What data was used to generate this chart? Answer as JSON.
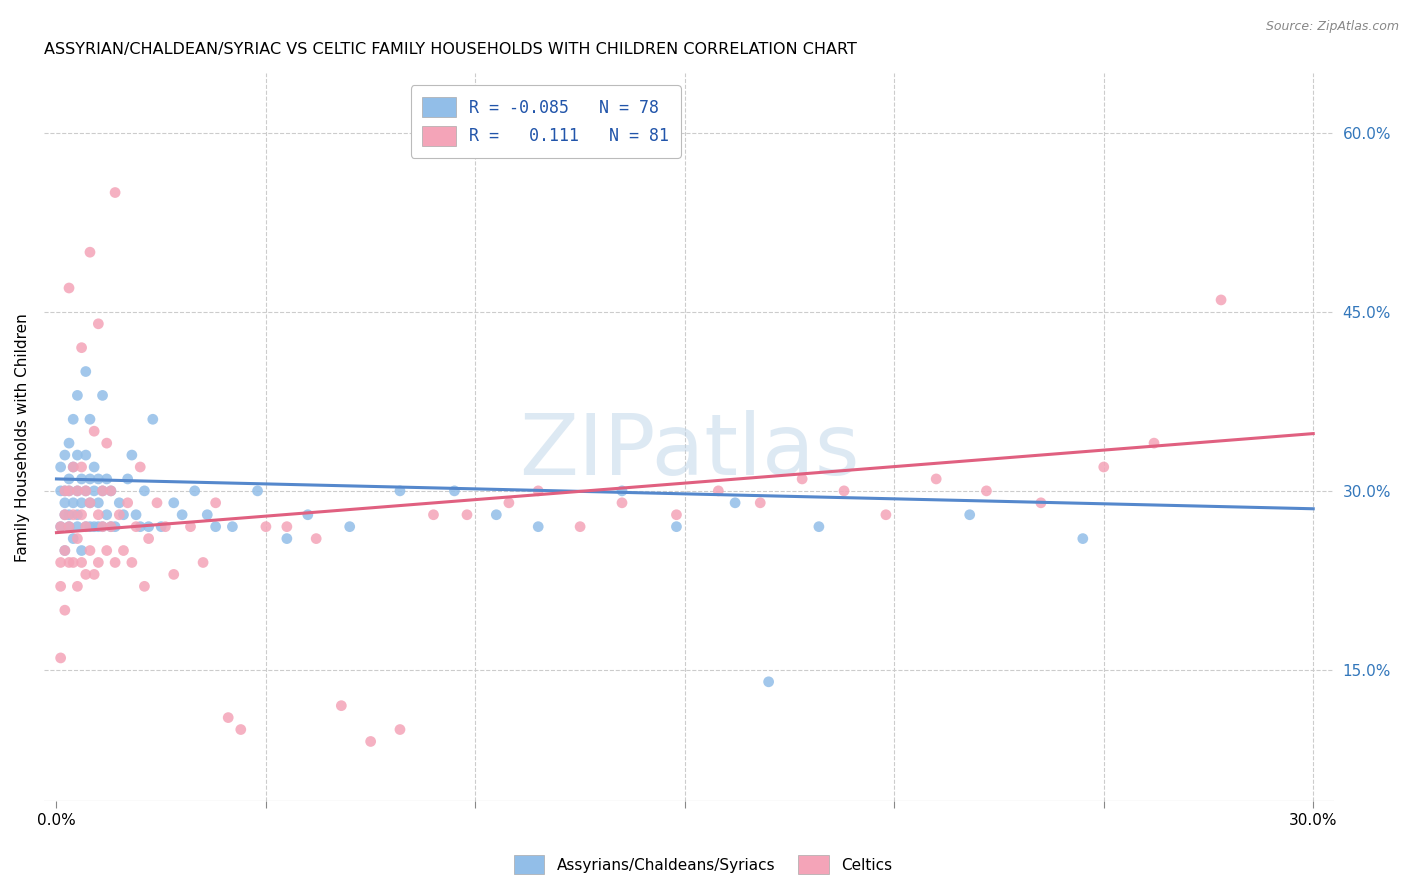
{
  "title": "ASSYRIAN/CHALDEAN/SYRIAC VS CELTIC FAMILY HOUSEHOLDS WITH CHILDREN CORRELATION CHART",
  "source": "Source: ZipAtlas.com",
  "ylabel": "Family Households with Children",
  "yticks": [
    "15.0%",
    "30.0%",
    "45.0%",
    "60.0%"
  ],
  "ytick_vals": [
    0.15,
    0.3,
    0.45,
    0.6
  ],
  "xtick_vals": [
    0.0,
    0.05,
    0.1,
    0.15,
    0.2,
    0.25,
    0.3
  ],
  "xlim": [
    -0.003,
    0.305
  ],
  "ylim": [
    0.04,
    0.65
  ],
  "blue_color": "#92BEE8",
  "pink_color": "#F4A4B8",
  "blue_line_color": "#5588CC",
  "pink_line_color": "#E06080",
  "watermark": "ZIPatlas",
  "blue_scatter_x": [
    0.001,
    0.001,
    0.001,
    0.002,
    0.002,
    0.002,
    0.002,
    0.002,
    0.003,
    0.003,
    0.003,
    0.003,
    0.003,
    0.004,
    0.004,
    0.004,
    0.004,
    0.005,
    0.005,
    0.005,
    0.005,
    0.005,
    0.006,
    0.006,
    0.006,
    0.007,
    0.007,
    0.007,
    0.007,
    0.008,
    0.008,
    0.008,
    0.008,
    0.009,
    0.009,
    0.009,
    0.01,
    0.01,
    0.01,
    0.011,
    0.011,
    0.011,
    0.012,
    0.012,
    0.013,
    0.013,
    0.014,
    0.015,
    0.016,
    0.017,
    0.018,
    0.019,
    0.02,
    0.021,
    0.022,
    0.023,
    0.025,
    0.028,
    0.03,
    0.033,
    0.036,
    0.038,
    0.042,
    0.048,
    0.055,
    0.06,
    0.07,
    0.082,
    0.095,
    0.105,
    0.115,
    0.135,
    0.148,
    0.162,
    0.17,
    0.182,
    0.218,
    0.245
  ],
  "blue_scatter_y": [
    0.27,
    0.3,
    0.32,
    0.25,
    0.28,
    0.3,
    0.33,
    0.29,
    0.27,
    0.31,
    0.34,
    0.28,
    0.3,
    0.26,
    0.29,
    0.32,
    0.36,
    0.27,
    0.3,
    0.33,
    0.28,
    0.38,
    0.25,
    0.31,
    0.29,
    0.27,
    0.3,
    0.33,
    0.4,
    0.27,
    0.29,
    0.31,
    0.36,
    0.27,
    0.3,
    0.32,
    0.27,
    0.29,
    0.31,
    0.27,
    0.3,
    0.38,
    0.28,
    0.31,
    0.27,
    0.3,
    0.27,
    0.29,
    0.28,
    0.31,
    0.33,
    0.28,
    0.27,
    0.3,
    0.27,
    0.36,
    0.27,
    0.29,
    0.28,
    0.3,
    0.28,
    0.27,
    0.27,
    0.3,
    0.26,
    0.28,
    0.27,
    0.3,
    0.3,
    0.28,
    0.27,
    0.3,
    0.27,
    0.29,
    0.14,
    0.27,
    0.28,
    0.26
  ],
  "pink_scatter_x": [
    0.001,
    0.001,
    0.001,
    0.001,
    0.002,
    0.002,
    0.002,
    0.002,
    0.003,
    0.003,
    0.003,
    0.003,
    0.004,
    0.004,
    0.004,
    0.005,
    0.005,
    0.005,
    0.006,
    0.006,
    0.006,
    0.006,
    0.007,
    0.007,
    0.007,
    0.008,
    0.008,
    0.008,
    0.009,
    0.009,
    0.01,
    0.01,
    0.01,
    0.011,
    0.011,
    0.012,
    0.012,
    0.013,
    0.013,
    0.014,
    0.014,
    0.015,
    0.016,
    0.017,
    0.018,
    0.019,
    0.02,
    0.021,
    0.022,
    0.024,
    0.026,
    0.028,
    0.032,
    0.035,
    0.038,
    0.041,
    0.044,
    0.05,
    0.055,
    0.062,
    0.068,
    0.075,
    0.082,
    0.09,
    0.098,
    0.108,
    0.115,
    0.125,
    0.135,
    0.148,
    0.158,
    0.168,
    0.178,
    0.188,
    0.198,
    0.21,
    0.222,
    0.235,
    0.25,
    0.262,
    0.278
  ],
  "pink_scatter_y": [
    0.24,
    0.27,
    0.22,
    0.16,
    0.25,
    0.28,
    0.3,
    0.2,
    0.24,
    0.27,
    0.3,
    0.47,
    0.24,
    0.28,
    0.32,
    0.22,
    0.26,
    0.3,
    0.24,
    0.28,
    0.42,
    0.32,
    0.23,
    0.27,
    0.3,
    0.25,
    0.29,
    0.5,
    0.23,
    0.35,
    0.24,
    0.28,
    0.44,
    0.27,
    0.3,
    0.25,
    0.34,
    0.27,
    0.3,
    0.55,
    0.24,
    0.28,
    0.25,
    0.29,
    0.24,
    0.27,
    0.32,
    0.22,
    0.26,
    0.29,
    0.27,
    0.23,
    0.27,
    0.24,
    0.29,
    0.11,
    0.1,
    0.27,
    0.27,
    0.26,
    0.12,
    0.09,
    0.1,
    0.28,
    0.28,
    0.29,
    0.3,
    0.27,
    0.29,
    0.28,
    0.3,
    0.29,
    0.31,
    0.3,
    0.28,
    0.31,
    0.3,
    0.29,
    0.32,
    0.34,
    0.46
  ],
  "blue_trend_x": [
    0.0,
    0.3
  ],
  "blue_trend_y": [
    0.31,
    0.285
  ],
  "pink_trend_x": [
    0.0,
    0.3
  ],
  "pink_trend_y": [
    0.265,
    0.348
  ]
}
